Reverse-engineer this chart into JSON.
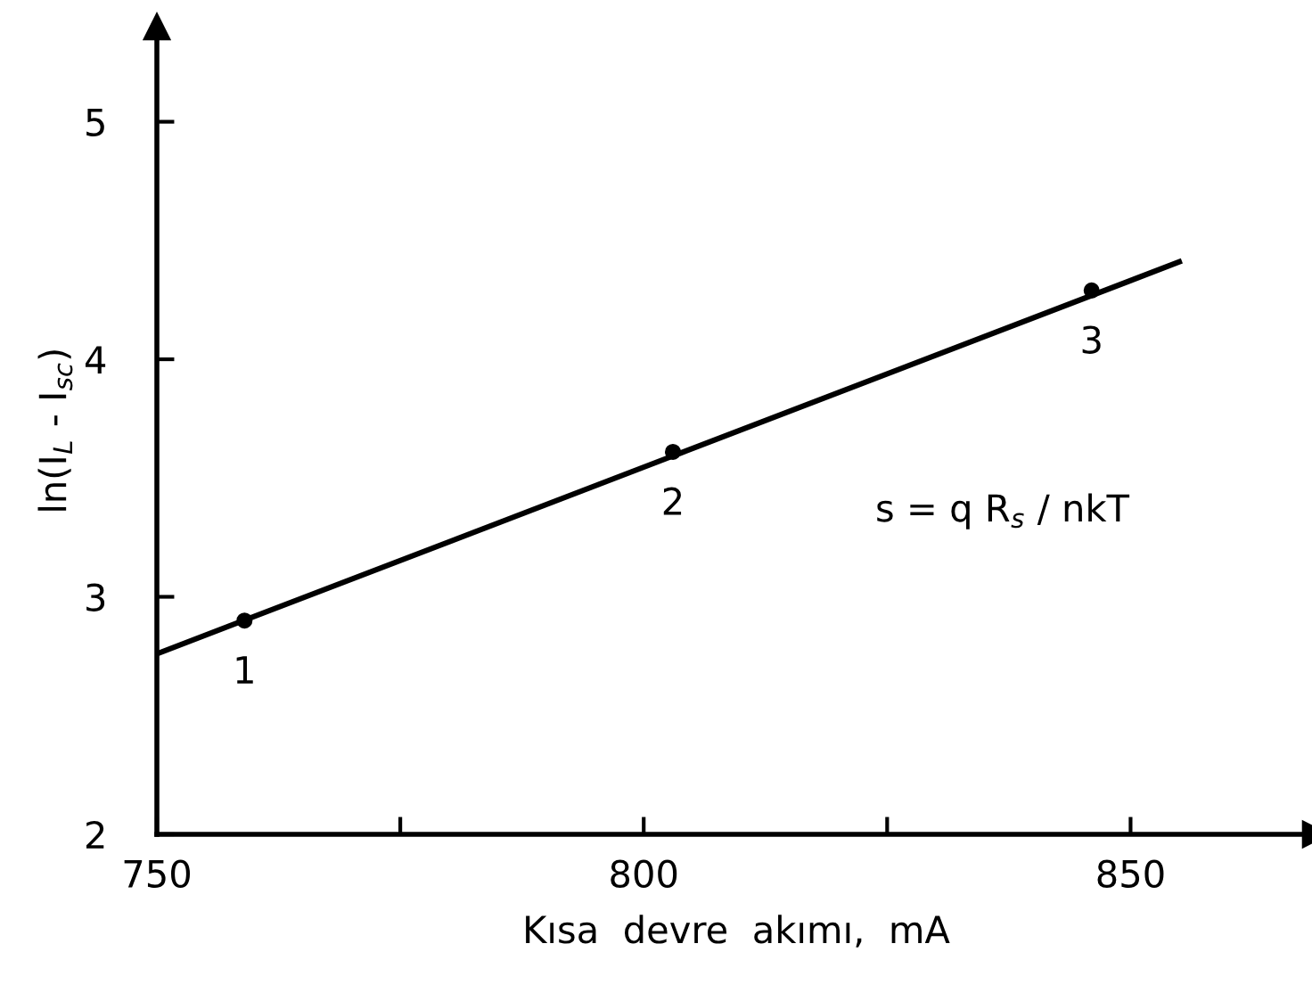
{
  "chart_data": {
    "type": "scatter",
    "xlabel": "Kısa  devre  akımı,  mA",
    "ylabel": "ln(I$_{L}$ - I$_{sc}$)",
    "series": [
      {
        "type": "line",
        "color": "#000000",
        "x": [
          750,
          855
        ],
        "values": [
          2.76,
          4.41
        ],
        "marker": "none",
        "line_style": "solid"
      },
      {
        "color": "#000000",
        "x": [
          759,
          803,
          846
        ],
        "values": [
          2.9,
          3.61,
          4.29
        ],
        "marker": "circle"
      }
    ],
    "annotations": [
      {
        "text": "1",
        "x": 759,
        "y": 2.9
      },
      {
        "text": "2",
        "x": 803,
        "y": 3.61
      },
      {
        "text": "3",
        "x": 846,
        "y": 4.29
      },
      "s = q R$_{s}$ / nkT"
    ],
    "xlim": [
      750,
      869
    ],
    "xticks": [
      750,
      {
        "value": 775,
        "label": null
      },
      800,
      {
        "value": 825,
        "label": null
      },
      850
    ],
    "ylim": [
      2,
      5.4
    ],
    "yticks": [
      2,
      3,
      4,
      5
    ],
    "grid": false,
    "legend": false
  }
}
